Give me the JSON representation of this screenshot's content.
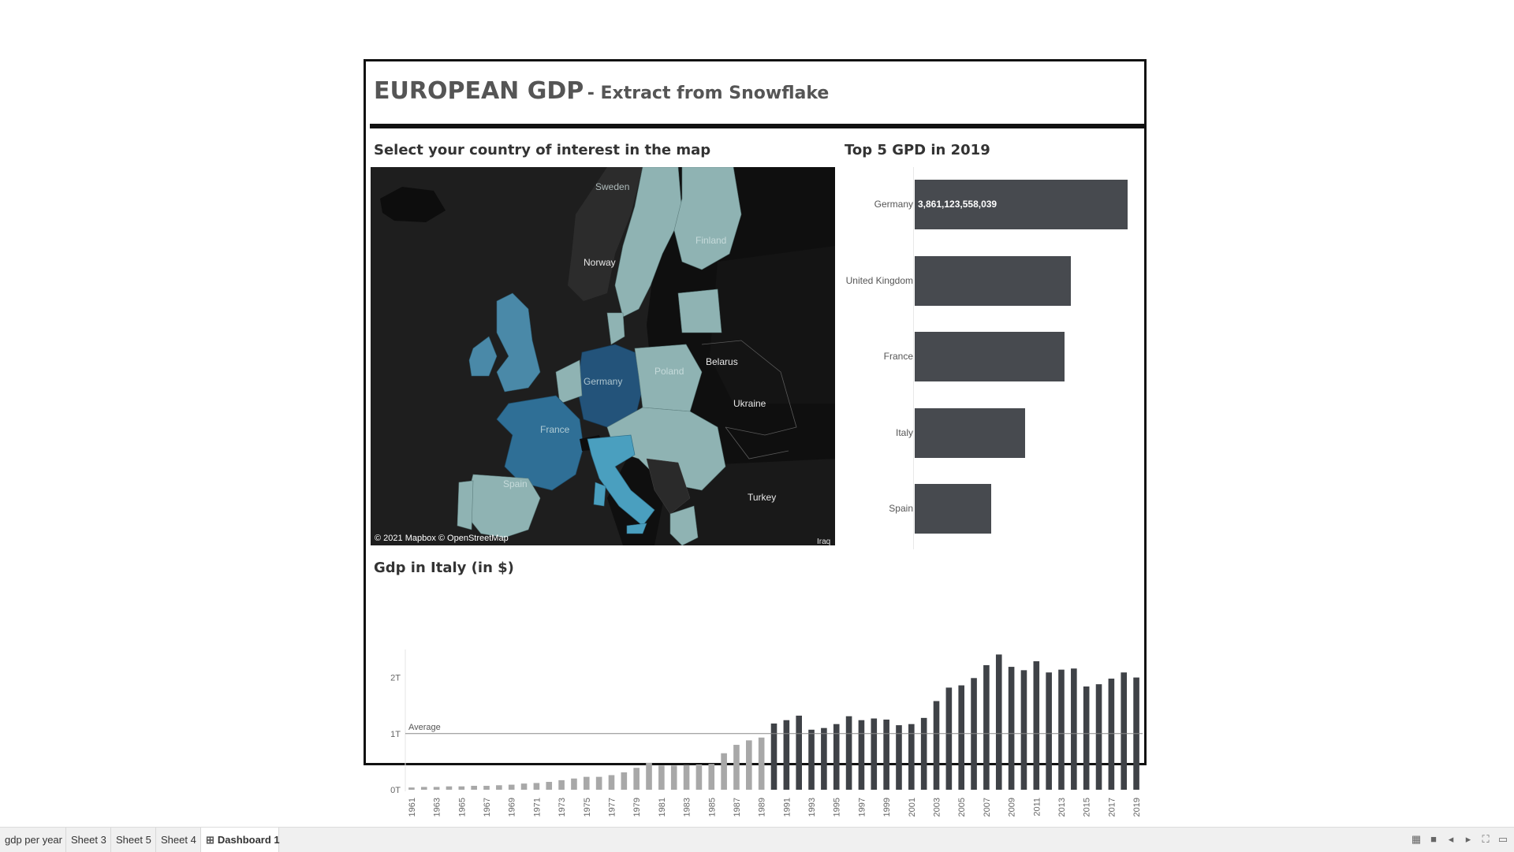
{
  "dashboard": {
    "title": "EUROPEAN GDP",
    "subtitle": "- Extract from Snowflake"
  },
  "map_section": {
    "title": "Select your country of interest in the map",
    "credit": "© 2021 Mapbox © OpenStreetMap",
    "labels": {
      "sweden": "Sweden",
      "finland": "Finland",
      "norway": "Norway",
      "germany": "Germany",
      "poland": "Poland",
      "belarus": "Belarus",
      "ukraine": "Ukraine",
      "france": "France",
      "spain": "Spain",
      "turkey": "Turkey",
      "iraq": "Iraq"
    },
    "colors": {
      "ocean": "#1e1e1e",
      "land_dark": "#262626",
      "low_gdp": "#8fb3b3",
      "mid_gdp": "#4a89a8",
      "high_gdp": "#2f6f96",
      "top_gdp": "#23537a"
    }
  },
  "top5": {
    "title": "Top 5 GPD in 2019",
    "countries": [
      "Germany",
      "United Kingdom",
      "France",
      "Italy",
      "Spain"
    ],
    "values": [
      3861123558039,
      2830000000000,
      2716000000000,
      2004000000000,
      1394000000000
    ],
    "germany_label": "3,861,123,558,039",
    "bar_color": "#474a4f"
  },
  "chart_data": {
    "type": "bar",
    "title": "Gdp in  Italy (in $)",
    "x": [
      1961,
      1962,
      1963,
      1964,
      1965,
      1966,
      1967,
      1968,
      1969,
      1970,
      1971,
      1972,
      1973,
      1974,
      1975,
      1976,
      1977,
      1978,
      1979,
      1980,
      1981,
      1982,
      1983,
      1984,
      1985,
      1986,
      1987,
      1988,
      1989,
      1990,
      1991,
      1992,
      1993,
      1994,
      1995,
      1996,
      1997,
      1998,
      1999,
      2000,
      2001,
      2002,
      2003,
      2004,
      2005,
      2006,
      2007,
      2008,
      2009,
      2010,
      2011,
      2012,
      2013,
      2014,
      2015,
      2016,
      2017,
      2018,
      2019
    ],
    "values": [
      0.04,
      0.05,
      0.05,
      0.06,
      0.06,
      0.07,
      0.07,
      0.08,
      0.09,
      0.11,
      0.12,
      0.14,
      0.17,
      0.2,
      0.23,
      0.23,
      0.26,
      0.31,
      0.39,
      0.48,
      0.43,
      0.43,
      0.44,
      0.45,
      0.46,
      0.65,
      0.8,
      0.88,
      0.93,
      1.18,
      1.24,
      1.32,
      1.07,
      1.1,
      1.17,
      1.31,
      1.24,
      1.27,
      1.25,
      1.15,
      1.17,
      1.28,
      1.58,
      1.82,
      1.86,
      1.99,
      2.22,
      2.41,
      2.19,
      2.13,
      2.29,
      2.09,
      2.14,
      2.16,
      1.84,
      1.88,
      1.98,
      2.09,
      2.0
    ],
    "tick_labels_x": [
      "1961",
      "1963",
      "1965",
      "1967",
      "1969",
      "1971",
      "1973",
      "1975",
      "1977",
      "1979",
      "1981",
      "1983",
      "1985",
      "1987",
      "1989",
      "1991",
      "1993",
      "1995",
      "1997",
      "1999",
      "2001",
      "2003",
      "2005",
      "2007",
      "2009",
      "2011",
      "2013",
      "2015",
      "2017",
      "2019"
    ],
    "y_ticks": [
      "0T",
      "1T",
      "2T"
    ],
    "ylim": [
      0,
      2.5
    ],
    "average": 1.0,
    "average_label": "Average",
    "highlight_from": 1990,
    "colors": {
      "below": "#a8a8a8",
      "above": "#3f4247",
      "average_line": "#888888"
    }
  },
  "tabs": {
    "items": [
      "gdp per year",
      "Sheet 3",
      "Sheet 5",
      "Sheet 4",
      "Dashboard 1"
    ],
    "active": "Dashboard 1"
  },
  "status_icons": [
    "grid-view-icon",
    "single-view-icon",
    "prev-icon",
    "next-icon",
    "fullscreen-icon",
    "presentation-icon"
  ]
}
